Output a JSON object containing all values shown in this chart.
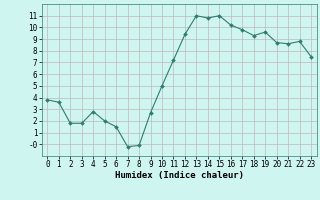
{
  "x": [
    0,
    1,
    2,
    3,
    4,
    5,
    6,
    7,
    8,
    9,
    10,
    11,
    12,
    13,
    14,
    15,
    16,
    17,
    18,
    19,
    20,
    21,
    22,
    23
  ],
  "y": [
    3.8,
    3.6,
    1.8,
    1.8,
    2.8,
    2.0,
    1.5,
    -0.2,
    -0.1,
    2.7,
    5.0,
    7.2,
    9.4,
    11.0,
    10.8,
    11.0,
    10.2,
    9.8,
    9.3,
    9.6,
    8.7,
    8.6,
    8.8,
    7.5
  ],
  "line_color": "#2e7d6e",
  "marker_color": "#2e7d6e",
  "bg_color": "#cef5f0",
  "grid_color": "#aad8d3",
  "grid_major_color": "#c0b8b8",
  "xlabel": "Humidex (Indice chaleur)",
  "xlim": [
    -0.5,
    23.5
  ],
  "ylim": [
    -1,
    12
  ],
  "yticks": [
    0,
    1,
    2,
    3,
    4,
    5,
    6,
    7,
    8,
    9,
    10,
    11
  ],
  "ytick_labels": [
    "-0",
    "1",
    "2",
    "3",
    "4",
    "5",
    "6",
    "7",
    "8",
    "9",
    "10",
    "11"
  ],
  "xticks": [
    0,
    1,
    2,
    3,
    4,
    5,
    6,
    7,
    8,
    9,
    10,
    11,
    12,
    13,
    14,
    15,
    16,
    17,
    18,
    19,
    20,
    21,
    22,
    23
  ],
  "tick_fontsize": 5.5,
  "xlabel_fontsize": 6.5
}
